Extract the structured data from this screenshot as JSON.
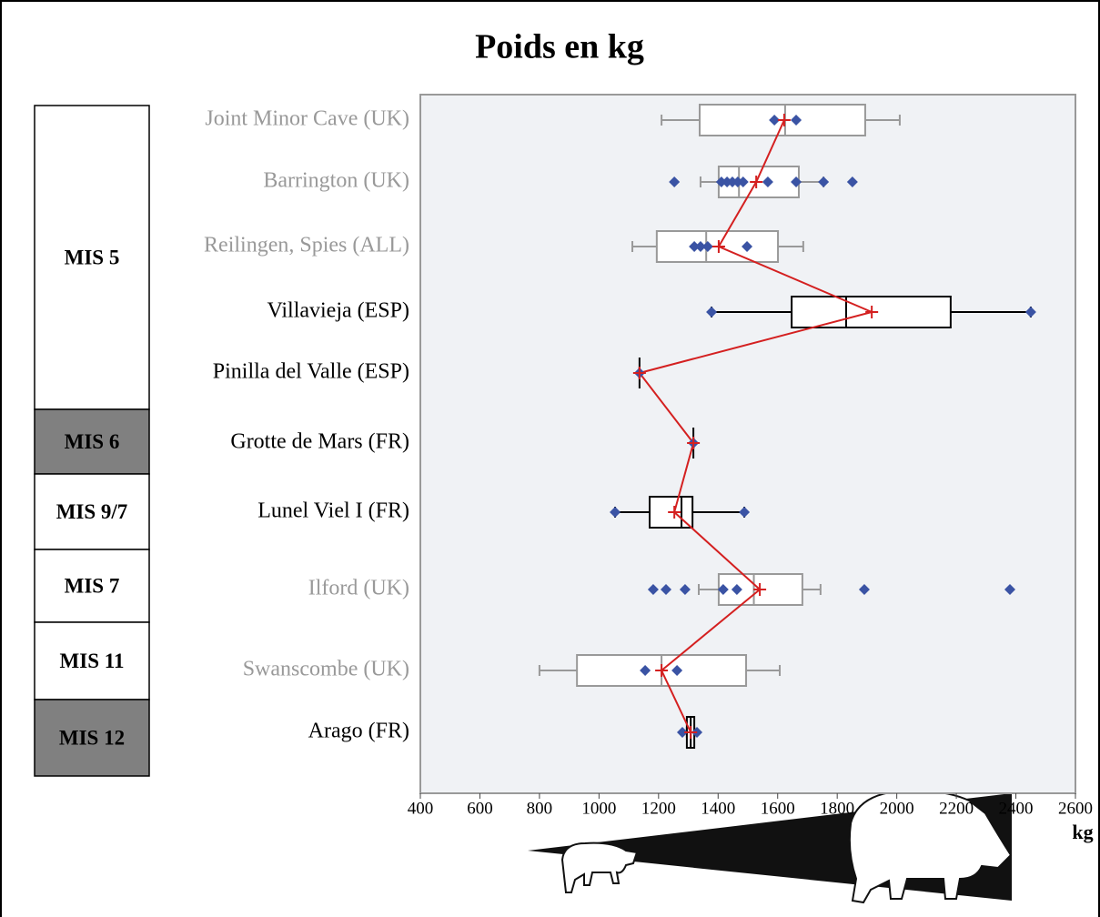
{
  "chart_data": {
    "type": "boxplot",
    "title": "Poids en kg",
    "x_label": "kg",
    "xlim": [
      400,
      2600
    ],
    "xticks": [
      400,
      600,
      800,
      1000,
      1200,
      1400,
      1600,
      1800,
      2000,
      2200,
      2400,
      2600
    ],
    "point_color": "#3a53a4",
    "mean_color": "#d42020",
    "background": "#f0f2f5",
    "series": [
      {
        "name": "Joint Minor Cave (UK)",
        "color": "#999999",
        "min": 1210,
        "q1": 1338,
        "median": 1625,
        "q3": 1894,
        "max": 2010,
        "mean": 1622,
        "points": [
          1589,
          1662
        ]
      },
      {
        "name": "Barrington (UK)",
        "color": "#999999",
        "min": 1341,
        "q1": 1402,
        "median": 1470,
        "q3": 1671,
        "max": 1754,
        "mean": 1528,
        "points": [
          1253,
          1411,
          1430,
          1448,
          1466,
          1484,
          1567,
          1662,
          1754,
          1851
        ]
      },
      {
        "name": "Reilingen, Spies (ALL)",
        "color": "#999999",
        "min": 1112,
        "q1": 1194,
        "median": 1360,
        "q3": 1601,
        "max": 1686,
        "mean": 1402,
        "points": [
          1320,
          1341,
          1365,
          1497
        ]
      },
      {
        "name": "Villavieja (ESP)",
        "color": "#000000",
        "min": 1378,
        "q1": 1647,
        "median": 1830,
        "q3": 2181,
        "max": 2450,
        "mean": 1916,
        "points": [
          1378,
          2450
        ]
      },
      {
        "name": "Pinilla del Valle (ESP)",
        "color": "#000000",
        "min": 1136,
        "q1": 1136,
        "median": 1136,
        "q3": 1136,
        "max": 1136,
        "mean": 1136,
        "points": [
          1136
        ]
      },
      {
        "name": "Grotte de Mars (FR)",
        "color": "#000000",
        "min": 1317,
        "q1": 1317,
        "median": 1317,
        "q3": 1317,
        "max": 1317,
        "mean": 1317,
        "points": [
          1317
        ]
      },
      {
        "name": "Lunel Viel I (FR)",
        "color": "#000000",
        "min": 1054,
        "q1": 1170,
        "median": 1277,
        "q3": 1314,
        "max": 1488,
        "mean": 1253,
        "points": [
          1054,
          1488
        ]
      },
      {
        "name": "Ilford (UK)",
        "color": "#999999",
        "min": 1335,
        "q1": 1402,
        "median": 1520,
        "q3": 1683,
        "max": 1744,
        "mean": 1540,
        "points": [
          1182,
          1225,
          1289,
          1417,
          1463,
          1891,
          2380
        ]
      },
      {
        "name": "Swanscombe (UK)",
        "color": "#999999",
        "min": 800,
        "q1": 926,
        "median": 1210,
        "q3": 1494,
        "max": 1607,
        "mean": 1210,
        "points": [
          1155,
          1262
        ]
      },
      {
        "name": "Arago (FR)",
        "color": "#000000",
        "min": 1295,
        "q1": 1295,
        "median": 1308,
        "q3": 1320,
        "max": 1320,
        "mean": 1308,
        "points": [
          1280,
          1329
        ]
      }
    ],
    "periods": [
      {
        "label": "MIS 5",
        "color": "#ffffff"
      },
      {
        "label": "MIS 6",
        "color": "#808080"
      },
      {
        "label": "MIS 9/7",
        "color": "#ffffff"
      },
      {
        "label": "MIS 7",
        "color": "#ffffff"
      },
      {
        "label": "MIS 11",
        "color": "#ffffff"
      },
      {
        "label": "MIS 12",
        "color": "#808080"
      }
    ]
  }
}
